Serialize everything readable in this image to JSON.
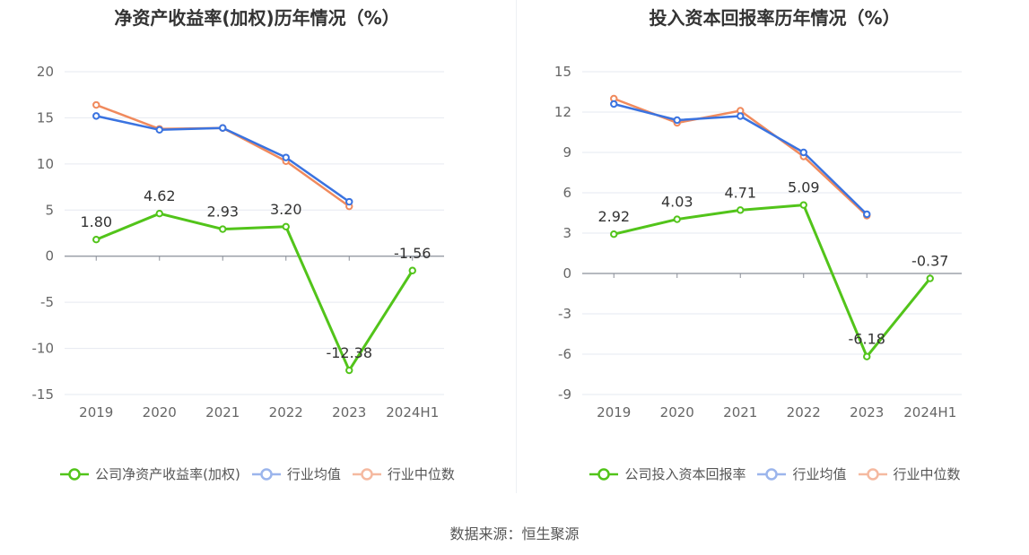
{
  "source_label": "数据来源：恒生聚源",
  "colors": {
    "company": "#52c41a",
    "avg": "#3a73e0",
    "median": "#f08a5d"
  },
  "chart_data": [
    {
      "type": "line",
      "title": "净资产收益率(加权)历年情况（%）",
      "categories": [
        "2019",
        "2020",
        "2021",
        "2022",
        "2023",
        "2024H1"
      ],
      "ylim": [
        -15,
        20
      ],
      "yticks": [
        20,
        15,
        10,
        5,
        0,
        -5,
        -10,
        -15
      ],
      "ytick_labels": [
        "20",
        "15",
        "10",
        "5",
        "0",
        "-5",
        "-10",
        "-15"
      ],
      "grid": true,
      "legend_position": "bottom",
      "series": [
        {
          "name": "公司净资产收益率(加权)",
          "values": [
            1.8,
            4.62,
            2.93,
            3.2,
            -12.38,
            -1.56
          ],
          "labels": [
            "1.80",
            "4.62",
            "2.93",
            "3.20",
            "-12.38",
            "-1.56"
          ]
        },
        {
          "name": "行业均值",
          "values": [
            15.2,
            13.7,
            13.9,
            10.7,
            5.9,
            null
          ]
        },
        {
          "name": "行业中位数",
          "values": [
            16.4,
            13.8,
            13.9,
            10.3,
            5.4,
            null
          ]
        }
      ]
    },
    {
      "type": "line",
      "title": "投入资本回报率历年情况（%）",
      "categories": [
        "2019",
        "2020",
        "2021",
        "2022",
        "2023",
        "2024H1"
      ],
      "ylim": [
        -9,
        15
      ],
      "yticks": [
        15,
        12,
        9,
        6,
        3,
        0,
        -3,
        -6,
        -9
      ],
      "ytick_labels": [
        "15",
        "12",
        "9",
        "6",
        "3",
        "0",
        "-3",
        "-6",
        "-9"
      ],
      "grid": true,
      "legend_position": "bottom",
      "series": [
        {
          "name": "公司投入资本回报率",
          "values": [
            2.92,
            4.03,
            4.71,
            5.09,
            -6.18,
            -0.37
          ],
          "labels": [
            "2.92",
            "4.03",
            "4.71",
            "5.09",
            "-6.18",
            "-0.37"
          ]
        },
        {
          "name": "行业均值",
          "values": [
            12.6,
            11.4,
            11.7,
            9.0,
            4.4,
            null
          ]
        },
        {
          "name": "行业中位数",
          "values": [
            13.0,
            11.2,
            12.1,
            8.7,
            4.3,
            null
          ]
        }
      ]
    }
  ]
}
